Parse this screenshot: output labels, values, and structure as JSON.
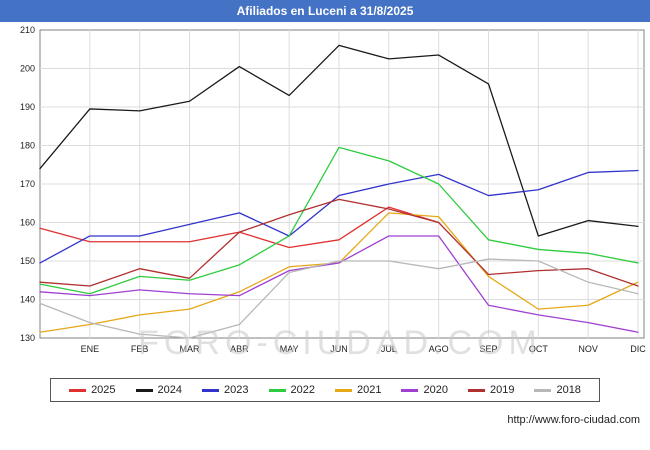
{
  "title": "Afiliados en Luceni a 31/8/2025",
  "watermark": "FORO-CIUDAD.COM",
  "footer_url": "http://www.foro-ciudad.com",
  "chart_data": {
    "type": "line",
    "title": "Afiliados en Luceni a 31/8/2025",
    "xlabel": "",
    "ylabel": "",
    "ylim": [
      130,
      210
    ],
    "y_ticks": [
      130,
      140,
      150,
      160,
      170,
      180,
      190,
      200,
      210
    ],
    "grid": true,
    "legend_position": "bottom",
    "x_tick_labels": [
      "ENE",
      "FEB",
      "MAR",
      "ABR",
      "MAY",
      "JUN",
      "JUL",
      "AGO",
      "SEP",
      "OCT",
      "NOV",
      "DIC"
    ],
    "x_layout_note": "Each series has 13 points: first value at the left axis, then one value per month ENE-DIC. Series 2025 ends at AGO (data to 31/8/2025).",
    "series": [
      {
        "name": "2025",
        "color": "#e03131",
        "values": [
          158.5,
          155,
          155,
          155,
          157.5,
          153.5,
          155.5,
          164,
          160
        ]
      },
      {
        "name": "2024",
        "color": "#1a1a1a",
        "values": [
          174,
          189.5,
          189,
          191.5,
          200.5,
          193,
          206,
          202.5,
          203.5,
          196,
          156.5,
          160.5,
          159
        ]
      },
      {
        "name": "2023",
        "color": "#3333cc",
        "values": [
          149.5,
          156.5,
          156.5,
          159.5,
          162.5,
          156.5,
          167,
          170,
          172.5,
          167,
          168.5,
          173,
          173.5
        ]
      },
      {
        "name": "2022",
        "color": "#2ecc40",
        "values": [
          144,
          141.5,
          146,
          145,
          149,
          156.5,
          179.5,
          176,
          170,
          155.5,
          153,
          152,
          149.5
        ]
      },
      {
        "name": "2021",
        "color": "#e6a817",
        "values": [
          131.5,
          133.5,
          136,
          137.5,
          142,
          148.5,
          149.5,
          162.5,
          161.5,
          146,
          137.5,
          138.5,
          144.5
        ]
      },
      {
        "name": "2020",
        "color": "#a040d0",
        "values": [
          142,
          141,
          142.5,
          141.5,
          141,
          147.5,
          149.5,
          156.5,
          156.5,
          138.5,
          136,
          134,
          131.5
        ]
      },
      {
        "name": "2019",
        "color": "#b03030",
        "values": [
          144.5,
          143.5,
          148,
          145.5,
          157.5,
          162,
          166,
          163.5,
          160,
          146.5,
          147.5,
          148,
          143.5
        ]
      },
      {
        "name": "2018",
        "color": "#b8b8b8",
        "values": [
          139,
          134,
          131,
          130,
          133.5,
          147,
          150,
          150,
          148,
          150.5,
          150,
          144.5,
          141.5
        ]
      }
    ]
  }
}
